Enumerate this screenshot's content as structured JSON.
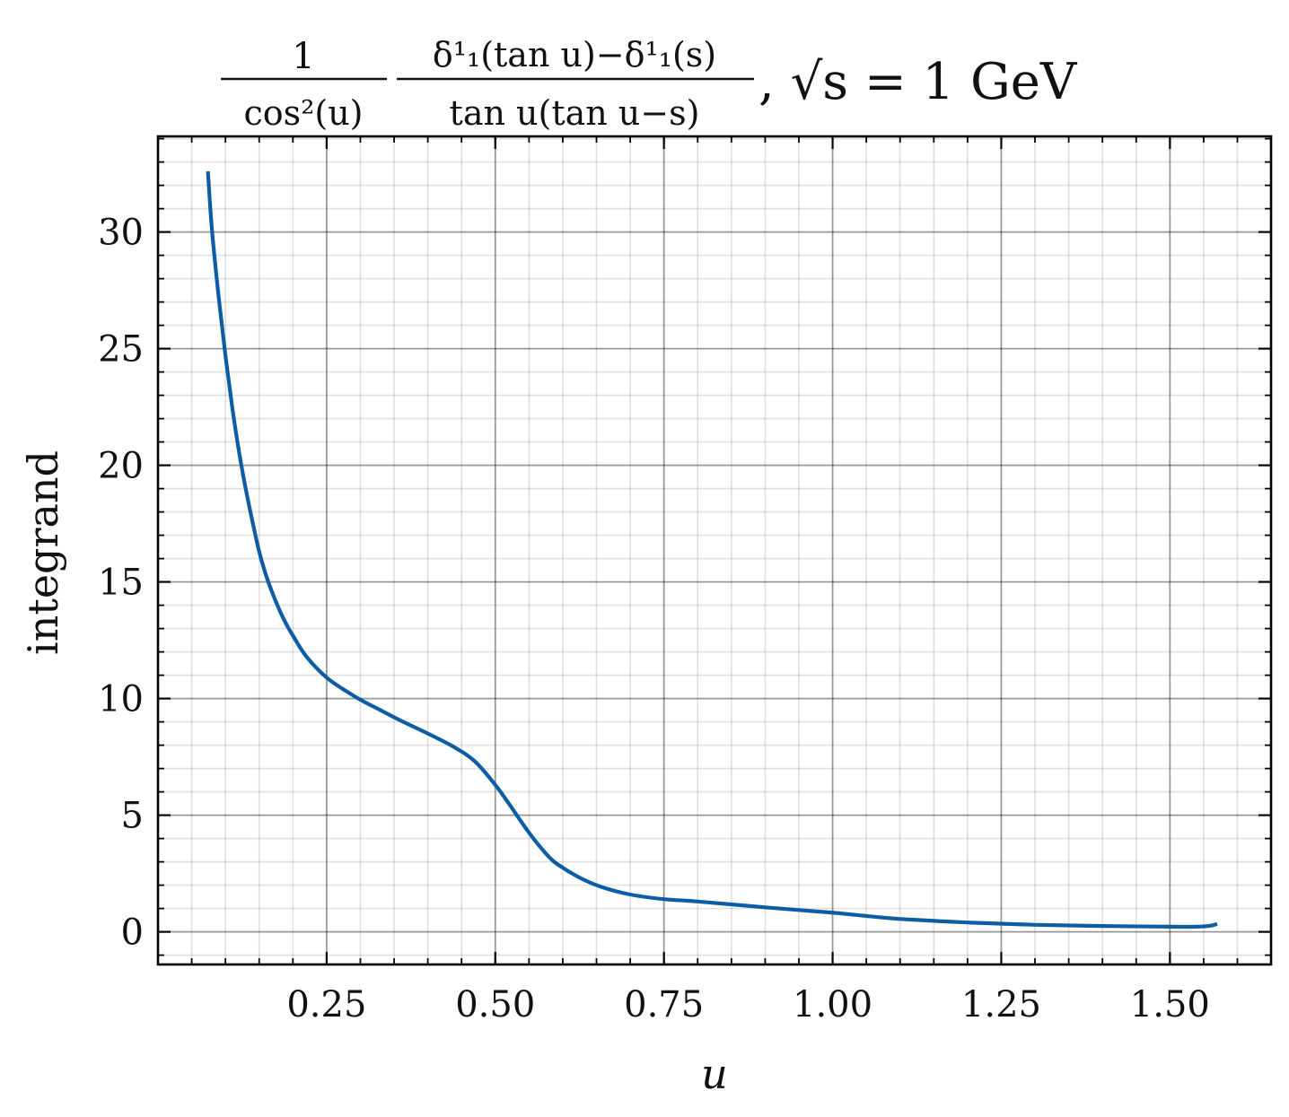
{
  "chart_data": {
    "type": "line",
    "title": {
      "frac1_num": "1",
      "frac1_den": "cos²(u)",
      "frac2_num": "δ¹₁(tan u)−δ¹₁(s)",
      "frac2_den": "tan u(tan u−s)",
      "suffix": ", √s = 1 GeV"
    },
    "xlabel": "u",
    "ylabel": "integrand",
    "xlim": [
      0.0,
      1.6499
    ],
    "ylim": [
      -1.4,
      34.1
    ],
    "x_ticks": [
      {
        "value": 0.25,
        "label": "0.25"
      },
      {
        "value": 0.5,
        "label": "0.50"
      },
      {
        "value": 0.75,
        "label": "0.75"
      },
      {
        "value": 1.0,
        "label": "1.00"
      },
      {
        "value": 1.25,
        "label": "1.25"
      },
      {
        "value": 1.5,
        "label": "1.50"
      }
    ],
    "y_ticks": [
      {
        "value": 0,
        "label": "0"
      },
      {
        "value": 5,
        "label": "5"
      },
      {
        "value": 10,
        "label": "10"
      },
      {
        "value": 15,
        "label": "15"
      },
      {
        "value": 20,
        "label": "20"
      },
      {
        "value": 25,
        "label": "25"
      },
      {
        "value": 30,
        "label": "30"
      }
    ],
    "x_minor_step": 0.05,
    "y_minor_step": 1,
    "grid": true,
    "series": [
      {
        "color": "#0C5DA5",
        "x": [
          0.074,
          0.08,
          0.09,
          0.1,
          0.11,
          0.12,
          0.13,
          0.14,
          0.15,
          0.16,
          0.17,
          0.18,
          0.19,
          0.2,
          0.22,
          0.25,
          0.28,
          0.3,
          0.33,
          0.36,
          0.4,
          0.44,
          0.47,
          0.5,
          0.52,
          0.55,
          0.58,
          0.6,
          0.63,
          0.66,
          0.7,
          0.75,
          0.8,
          0.9,
          1.0,
          1.05,
          1.1,
          1.2,
          1.3,
          1.4,
          1.5,
          1.54,
          1.56,
          1.57
        ],
        "y": [
          32.6,
          30.1,
          27.2,
          24.7,
          22.5,
          20.6,
          19.0,
          17.6,
          16.3,
          15.3,
          14.5,
          13.8,
          13.2,
          12.7,
          11.8,
          10.9,
          10.3,
          9.95,
          9.5,
          9.05,
          8.5,
          7.9,
          7.3,
          6.3,
          5.5,
          4.25,
          3.2,
          2.75,
          2.25,
          1.9,
          1.6,
          1.4,
          1.3,
          1.05,
          0.82,
          0.68,
          0.55,
          0.4,
          0.3,
          0.25,
          0.22,
          0.22,
          0.26,
          0.34
        ]
      }
    ]
  }
}
